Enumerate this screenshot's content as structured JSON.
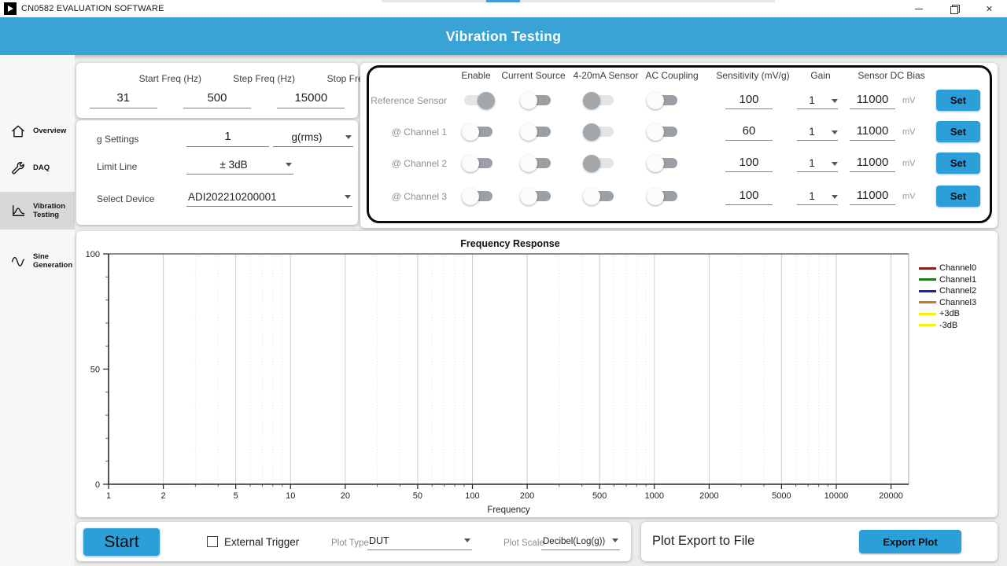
{
  "window": {
    "title": "CN0582 EVALUATION SOFTWARE",
    "close_glyph": "✕"
  },
  "header": {
    "title": "Vibration Testing"
  },
  "sidebar": {
    "items": [
      {
        "label": "Overview",
        "icon": "home-icon",
        "selected": false
      },
      {
        "label": "DAQ",
        "icon": "wrench-icon",
        "selected": false
      },
      {
        "label": "Vibration Testing",
        "icon": "vibration-plot-icon",
        "selected": true
      },
      {
        "label": "Sine Generation",
        "icon": "sine-wave-icon",
        "selected": false
      }
    ]
  },
  "freq_panel": {
    "fields": [
      {
        "label": "Start Freq (Hz)",
        "value": "31"
      },
      {
        "label": "Step Freq (Hz)",
        "value": "500"
      },
      {
        "label": "Stop Freq (Hz)",
        "value": "15000"
      }
    ]
  },
  "settings_panel": {
    "g_settings": {
      "label": "g Settings",
      "value": "1",
      "unit": "g(rms)"
    },
    "limit_line": {
      "label": "Limit Line",
      "value": "± 3dB"
    },
    "select_device": {
      "label": "Select Device",
      "value": "ADI202210200001"
    }
  },
  "channel_panel": {
    "columns": [
      "Enable",
      "Current Source",
      "4-20mA Sensor",
      "AC Coupling",
      "Sensitivity (mV/g)",
      "Gain",
      "Sensor DC Bias"
    ],
    "mv_unit": "mV",
    "set_label": "Set",
    "rows": [
      {
        "label": "Reference Sensor",
        "toggles": [
          "right-gray",
          "left-white",
          "left-gray",
          "left-white"
        ],
        "sensitivity": "100",
        "gain": "1",
        "bias": "11000"
      },
      {
        "label": "@ Channel 1",
        "toggles": [
          "left-white",
          "left-white",
          "left-gray",
          "left-white"
        ],
        "sensitivity": "60",
        "gain": "1",
        "bias": "11000"
      },
      {
        "label": "@ Channel 2",
        "toggles": [
          "left-white",
          "left-white",
          "left-gray",
          "left-white"
        ],
        "sensitivity": "100",
        "gain": "1",
        "bias": "11000"
      },
      {
        "label": "@ Channel 3",
        "toggles": [
          "left-white",
          "left-white",
          "left-white",
          "left-white"
        ],
        "sensitivity": "100",
        "gain": "1",
        "bias": "11000"
      }
    ]
  },
  "chart_data": {
    "type": "line",
    "title": "Frequency Response",
    "xlabel": "Frequency",
    "ylabel": "",
    "x_scale": "log",
    "xlim": [
      1,
      25000
    ],
    "ylim": [
      0,
      100
    ],
    "x_ticks": [
      1,
      2,
      5,
      10,
      20,
      50,
      100,
      200,
      500,
      1000,
      2000,
      5000,
      10000,
      20000
    ],
    "y_ticks": [
      0,
      50,
      100
    ],
    "y_minor_step": 10,
    "grid": true,
    "legend_position": "right",
    "series": [
      {
        "name": "Channel0",
        "color": "#8b2020",
        "values": []
      },
      {
        "name": "Channel1",
        "color": "#1e7a1e",
        "values": []
      },
      {
        "name": "Channel2",
        "color": "#2222b0",
        "values": []
      },
      {
        "name": "Channel3",
        "color": "#c07c28",
        "values": []
      },
      {
        "name": "+3dB",
        "color": "#f2f20c",
        "values": []
      },
      {
        "name": "-3dB",
        "color": "#f2f20c",
        "values": []
      }
    ]
  },
  "bottom_bar": {
    "start_label": "Start",
    "external_trigger": {
      "label": "External Trigger",
      "checked": false
    },
    "plot_type": {
      "label": "Plot Type",
      "value": "DUT"
    },
    "plot_scale": {
      "label": "Plot Scale",
      "value": "Decibel(Log(g))"
    },
    "export": {
      "label": "Plot Export to File",
      "button_label": "Export Plot"
    }
  },
  "colors": {
    "accent": "#2d9fd8",
    "header_blue": "#39a3d6"
  }
}
